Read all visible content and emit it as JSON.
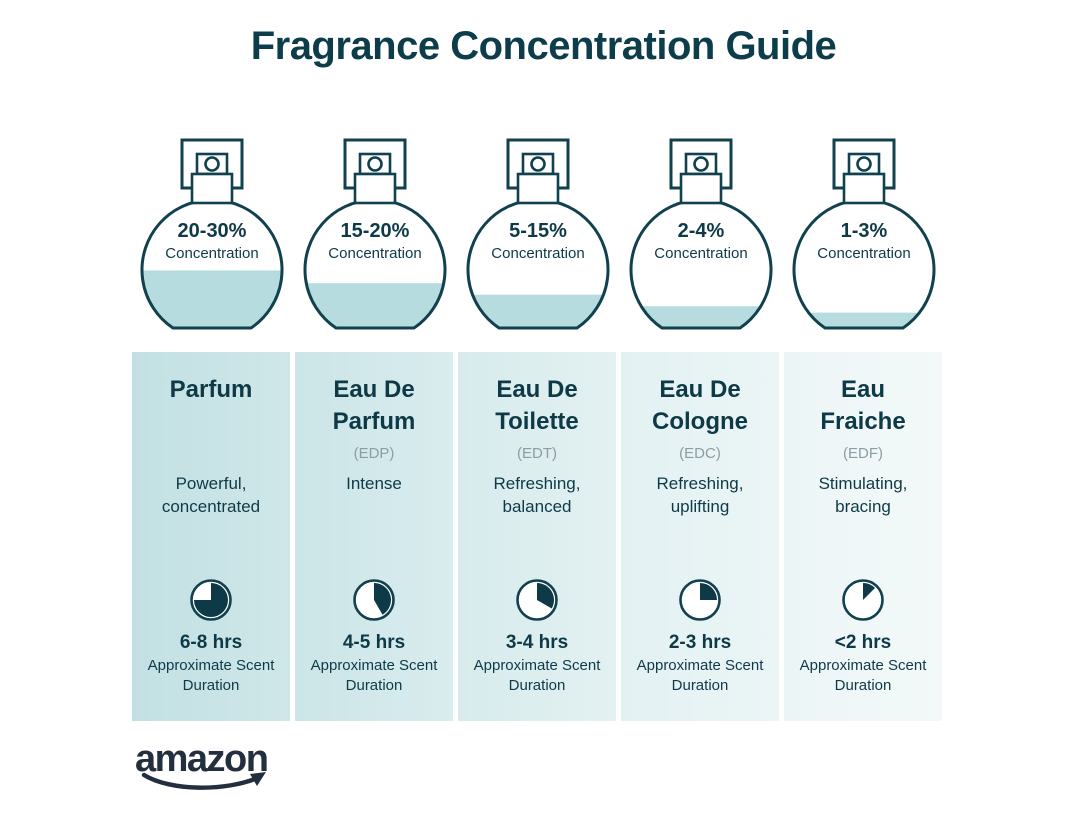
{
  "page": {
    "title": "Fragrance Concentration Guide",
    "background": "#ffffff"
  },
  "colors": {
    "ink": "#0e3a47",
    "outline": "#11414e",
    "liquid": "#b6dce0",
    "muted_gray": "#8c9da3",
    "logo_navy": "#232f3e"
  },
  "icons": {
    "bottle": "perfume-spray-bottle-icon",
    "clock": "scent-duration-clock-icon",
    "smile": "amazon-smile-arrow-icon"
  },
  "columns": [
    {
      "concentration": "20-30%",
      "concentration_label": "Concentration",
      "bottle_fill_ratio": 0.45,
      "name": "Parfum",
      "abbr": "",
      "description": "Powerful, concentrated",
      "clock_fill_deg": 270,
      "duration": "6-8 hrs",
      "duration_caption": "Approximate Scent Duration",
      "card_bg_from": "#c2e0e3",
      "card_bg_to": "#cfe7e9"
    },
    {
      "concentration": "15-20%",
      "concentration_label": "Concentration",
      "bottle_fill_ratio": 0.35,
      "name": "Eau De Parfum",
      "abbr": "(EDP)",
      "description": "Intense",
      "clock_fill_deg": 150,
      "duration": "4-5 hrs",
      "duration_caption": "Approximate Scent Duration",
      "card_bg_from": "#cce5e7",
      "card_bg_to": "#d9ecee"
    },
    {
      "concentration": "5-15%",
      "concentration_label": "Concentration",
      "bottle_fill_ratio": 0.26,
      "name": "Eau De Toilette",
      "abbr": "(EDT)",
      "description": "Refreshing, balanced",
      "clock_fill_deg": 120,
      "duration": "3-4 hrs",
      "duration_caption": "Approximate Scent Duration",
      "card_bg_from": "#d7ebec",
      "card_bg_to": "#e3f1f2"
    },
    {
      "concentration": "2-4%",
      "concentration_label": "Concentration",
      "bottle_fill_ratio": 0.17,
      "name": "Eau De Cologne",
      "abbr": "(EDC)",
      "description": "Refreshing, uplifting",
      "clock_fill_deg": 90,
      "duration": "2-3 hrs",
      "duration_caption": "Approximate Scent Duration",
      "card_bg_from": "#e3f1f2",
      "card_bg_to": "#ebf5f6"
    },
    {
      "concentration": "1-3%",
      "concentration_label": "Concentration",
      "bottle_fill_ratio": 0.12,
      "name": "Eau Fraiche",
      "abbr": "(EDF)",
      "description": "Stimulating, bracing",
      "clock_fill_deg": 45,
      "duration": "<2 hrs",
      "duration_caption": "Approximate Scent Duration",
      "card_bg_from": "#ecf5f6",
      "card_bg_to": "#f3f9f9"
    }
  ],
  "footer": {
    "logo_text": "amazon"
  }
}
